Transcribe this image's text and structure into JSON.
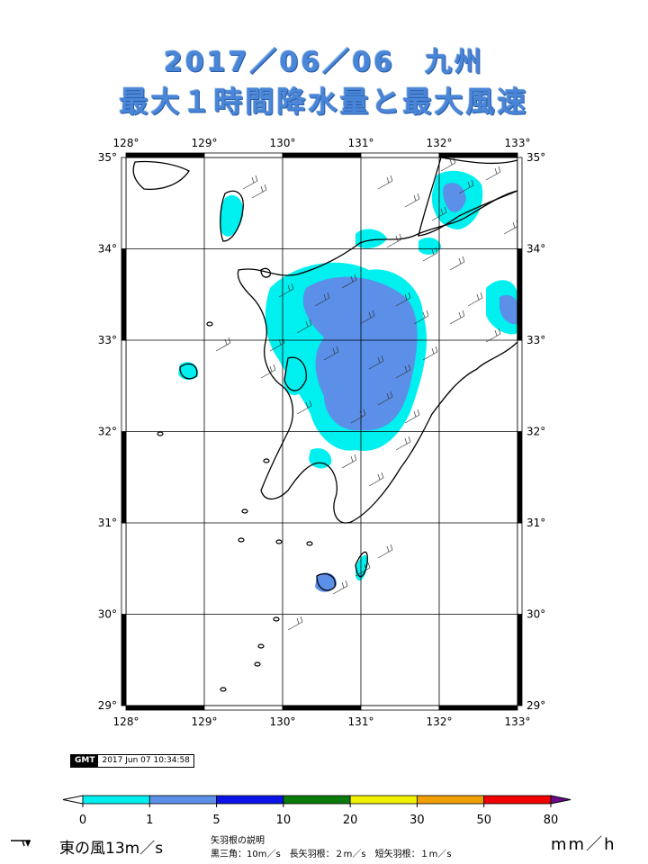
{
  "title": {
    "line1": "2017／06／06　九州",
    "line2": "最大１時間降水量と最大風速"
  },
  "map": {
    "lon_ticks": [
      "128°",
      "129°",
      "130°",
      "131°",
      "132°",
      "133°"
    ],
    "lat_ticks": [
      "35°",
      "34°",
      "33°",
      "32°",
      "31°",
      "30°",
      "29°"
    ],
    "lon_range": [
      128,
      133
    ],
    "lat_range": [
      29,
      35
    ],
    "grid": true
  },
  "stamp": {
    "logo": "GMT",
    "timestamp": "2017 Jun 07 10:34:58"
  },
  "legend": {
    "labels": [
      "0",
      "1",
      "5",
      "10",
      "20",
      "30",
      "50",
      "80"
    ],
    "colors": [
      "#00f0f0",
      "#5b8fe8",
      "#0a14e6",
      "#0a7a0a",
      "#f0f000",
      "#f0a000",
      "#f00000"
    ],
    "unit": "mm／h"
  },
  "wind_note": {
    "sample": "東の風13m／s",
    "heading": "矢羽根の説明",
    "detail": "黒三角：10m／s　長矢羽根：２m／s　短矢羽根：１m／s"
  },
  "colors": {
    "title": "#4a86d8",
    "rain_light": "#00f0f0",
    "rain_medium": "#5b8fe8"
  }
}
